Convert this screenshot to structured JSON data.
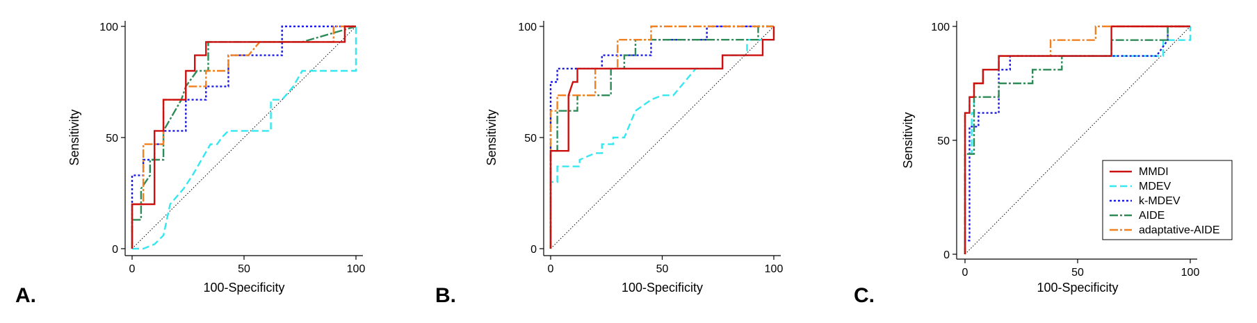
{
  "chart_data": [
    {
      "type": "line",
      "panel_label": "A.",
      "xlabel": "100-Specificity",
      "ylabel": "Sensitivity",
      "xlim": [
        0,
        100
      ],
      "ylim": [
        0,
        100
      ],
      "xticks": [
        "0",
        "50",
        "100"
      ],
      "yticks": [
        "0",
        "50",
        "100"
      ],
      "legend": false,
      "diagonal": true,
      "series": [
        {
          "name": "MDEV",
          "color": "#33e8f0",
          "dash": "10,5",
          "x": [
            0,
            5,
            10,
            14,
            17,
            23,
            27,
            31,
            35,
            38,
            40,
            43,
            48,
            53,
            57,
            62,
            62,
            67,
            72,
            76,
            81,
            85,
            90,
            95,
            100,
            100
          ],
          "y": [
            0,
            0,
            2,
            6,
            20,
            27,
            33,
            40,
            47,
            47,
            50,
            53,
            53,
            53,
            53,
            53,
            67,
            67,
            73,
            80,
            80,
            80,
            80,
            80,
            80,
            100
          ]
        },
        {
          "name": "k-MDEV",
          "color": "#1a1ae0",
          "dash": "3,3",
          "x": [
            0,
            0,
            5,
            5,
            10,
            10,
            14,
            14,
            24,
            24,
            33,
            33,
            43,
            43,
            52,
            52,
            67,
            67,
            96,
            96,
            100
          ],
          "y": [
            0,
            33,
            33,
            40,
            40,
            47,
            47,
            53,
            53,
            67,
            67,
            73,
            73,
            87,
            87,
            87,
            87,
            100,
            100,
            100,
            100
          ]
        },
        {
          "name": "AIDE",
          "color": "#2e8b57",
          "dash": "12,3,3,3",
          "x": [
            0,
            0,
            4,
            4,
            8,
            8,
            14,
            14,
            22,
            24,
            29,
            34,
            34,
            52,
            76,
            100
          ],
          "y": [
            0,
            13,
            13,
            27,
            33,
            40,
            40,
            53,
            67,
            73,
            80,
            80,
            93,
            93,
            93,
            100
          ]
        },
        {
          "name": "adaptative-AIDE",
          "color": "#f08020",
          "dash": "12,3,3,3",
          "x": [
            0,
            0,
            5,
            5,
            14,
            14,
            19,
            24,
            24,
            33,
            33,
            43,
            43,
            52,
            57,
            90,
            90,
            100
          ],
          "y": [
            0,
            20,
            20,
            47,
            47,
            67,
            67,
            67,
            73,
            73,
            80,
            80,
            87,
            87,
            93,
            93,
            100,
            100
          ]
        },
        {
          "name": "MMDI",
          "color": "#cc1010",
          "dash": "",
          "x": [
            0,
            0,
            10,
            10,
            14,
            14,
            24,
            24,
            28,
            28,
            33,
            33,
            52,
            76,
            95,
            95,
            100
          ],
          "y": [
            0,
            20,
            20,
            53,
            53,
            67,
            67,
            80,
            80,
            87,
            87,
            93,
            93,
            93,
            93,
            100,
            100
          ]
        }
      ]
    },
    {
      "type": "line",
      "panel_label": "B.",
      "xlabel": "100-Specificity",
      "ylabel": "Sensitivity",
      "xlim": [
        0,
        100
      ],
      "ylim": [
        0,
        100
      ],
      "xticks": [
        "0",
        "50",
        "100"
      ],
      "yticks": [
        "0",
        "50",
        "100"
      ],
      "legend": false,
      "diagonal": true,
      "series": [
        {
          "name": "MDEV",
          "color": "#33e8f0",
          "dash": "10,5",
          "x": [
            0,
            0,
            3,
            3,
            13,
            13,
            20,
            23,
            23,
            28,
            28,
            33,
            38,
            38,
            45,
            50,
            55,
            60,
            65,
            65,
            77,
            77,
            88,
            88,
            95,
            100,
            100
          ],
          "y": [
            0,
            30,
            30,
            37,
            37,
            40,
            43,
            43,
            47,
            47,
            50,
            50,
            62,
            62,
            67,
            69,
            69,
            75,
            81,
            81,
            81,
            87,
            87,
            94,
            94,
            94,
            100
          ]
        },
        {
          "name": "k-MDEV",
          "color": "#1a1ae0",
          "dash": "3,3",
          "x": [
            0,
            0,
            3,
            3,
            23,
            23,
            30,
            30,
            45,
            45,
            70,
            70,
            100
          ],
          "y": [
            0,
            75,
            75,
            81,
            81,
            87,
            87,
            87,
            87,
            94,
            94,
            100,
            100
          ]
        },
        {
          "name": "AIDE",
          "color": "#2e8b57",
          "dash": "12,3,3,3",
          "x": [
            0,
            0,
            3,
            3,
            12,
            12,
            27,
            27,
            33,
            33,
            38,
            38,
            93,
            93,
            100
          ],
          "y": [
            0,
            44,
            44,
            62,
            62,
            69,
            69,
            81,
            81,
            87,
            87,
            94,
            94,
            100,
            100
          ]
        },
        {
          "name": "adaptative-AIDE",
          "color": "#f08020",
          "dash": "12,3,3,3",
          "x": [
            0,
            0,
            3,
            3,
            8,
            8,
            20,
            20,
            30,
            30,
            45,
            45,
            100
          ],
          "y": [
            0,
            62,
            62,
            69,
            69,
            69,
            69,
            81,
            81,
            94,
            94,
            100,
            100
          ]
        },
        {
          "name": "MMDI",
          "color": "#cc1010",
          "dash": "",
          "x": [
            0,
            0,
            8,
            8,
            10,
            12,
            12,
            77,
            77,
            95,
            95,
            100,
            100
          ],
          "y": [
            0,
            44,
            44,
            69,
            75,
            75,
            81,
            81,
            87,
            87,
            94,
            94,
            100
          ]
        }
      ]
    },
    {
      "type": "line",
      "panel_label": "C.",
      "xlabel": "100-Specificity",
      "ylabel": "Sensitivity",
      "xlim": [
        0,
        100
      ],
      "ylim": [
        0,
        100
      ],
      "xticks": [
        "0",
        "50",
        "100"
      ],
      "yticks": [
        "0",
        "50",
        "100"
      ],
      "legend": true,
      "legend_position": "bottom-right",
      "diagonal": true,
      "series": [
        {
          "name": "MMDI",
          "color": "#cc1010",
          "dash": "",
          "x": [
            0,
            0,
            2,
            2,
            4,
            4,
            8,
            8,
            15,
            15,
            65,
            65,
            100
          ],
          "y": [
            0,
            62,
            62,
            69,
            69,
            75,
            75,
            81,
            81,
            87,
            87,
            100,
            100
          ]
        },
        {
          "name": "MDEV",
          "color": "#33e8f0",
          "dash": "10,5",
          "x": [
            0,
            0,
            3,
            3,
            4,
            4,
            8,
            8,
            15,
            15,
            88,
            88,
            100,
            100
          ],
          "y": [
            0,
            44,
            44,
            62,
            62,
            75,
            75,
            81,
            81,
            87,
            87,
            94,
            94,
            100
          ]
        },
        {
          "name": "k-MDEV",
          "color": "#1a1ae0",
          "dash": "3,3",
          "x": [
            0,
            0,
            2,
            2,
            4,
            4,
            6,
            6,
            8,
            8,
            12,
            15,
            15,
            20,
            20,
            85,
            90,
            90,
            100
          ],
          "y": [
            0,
            6,
            6,
            56,
            56,
            56,
            56,
            62,
            62,
            62,
            62,
            62,
            81,
            81,
            87,
            87,
            94,
            100,
            100
          ]
        },
        {
          "name": "AIDE",
          "color": "#2e8b57",
          "dash": "12,3,3,3",
          "x": [
            0,
            0,
            4,
            4,
            15,
            15,
            20,
            20,
            30,
            30,
            43,
            43,
            65,
            65,
            90,
            90,
            100
          ],
          "y": [
            0,
            44,
            44,
            69,
            69,
            75,
            75,
            75,
            75,
            81,
            81,
            87,
            87,
            94,
            94,
            100,
            100
          ]
        },
        {
          "name": "adaptative-AIDE",
          "color": "#f08020",
          "dash": "12,3,3,3",
          "x": [
            0,
            0,
            2,
            2,
            4,
            4,
            8,
            8,
            15,
            15,
            38,
            38,
            58,
            58,
            100
          ],
          "y": [
            0,
            62,
            62,
            69,
            69,
            75,
            75,
            81,
            81,
            87,
            87,
            94,
            94,
            100,
            100
          ]
        }
      ]
    }
  ]
}
